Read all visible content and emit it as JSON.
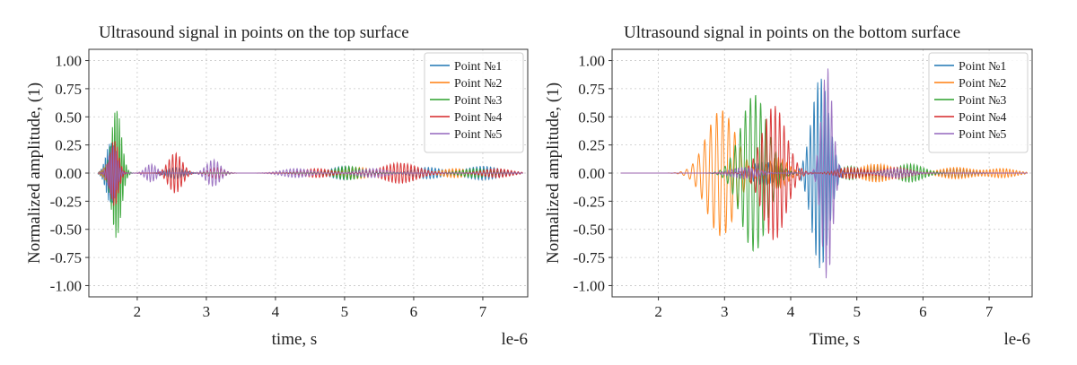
{
  "chart_data": [
    {
      "type": "line",
      "title": "Ultrasound signal in points on the top surface",
      "xlabel": "time, s",
      "ylabel": "Normalized amplitude, (1)",
      "x_offset_label": "le-6",
      "xlim": [
        1.3,
        7.65
      ],
      "ylim": [
        -1.1,
        1.1
      ],
      "xticks": [
        "2",
        "3",
        "4",
        "5",
        "6",
        "7"
      ],
      "yticks": [
        "1.00",
        "0.75",
        "0.50",
        "0.25",
        "0.00",
        "-0.25",
        "-0.50",
        "-0.75",
        "-1.00"
      ],
      "grid": true,
      "legend_position": "top-right",
      "series": [
        {
          "name": "Point №1",
          "color": "#1f77b4",
          "bursts": [
            [
              1.62,
              0.28,
              34,
              0.07
            ],
            [
              2.55,
              0.05,
              22,
              0.12
            ],
            [
              5.0,
              0.06,
              20,
              0.2
            ],
            [
              6.2,
              0.05,
              20,
              0.2
            ],
            [
              7.0,
              0.06,
              20,
              0.25
            ]
          ]
        },
        {
          "name": "Point №2",
          "color": "#ff7f0e",
          "bursts": [
            [
              1.6,
              0.1,
              34,
              0.07
            ],
            [
              5.2,
              0.05,
              20,
              0.2
            ],
            [
              6.6,
              0.04,
              20,
              0.2
            ]
          ]
        },
        {
          "name": "Point №3",
          "color": "#2ca02c",
          "bursts": [
            [
              1.7,
              0.58,
              30,
              0.07
            ],
            [
              5.05,
              0.06,
              20,
              0.2
            ],
            [
              6.9,
              0.04,
              20,
              0.2
            ]
          ]
        },
        {
          "name": "Point №4",
          "color": "#d62728",
          "bursts": [
            [
              1.67,
              0.3,
              30,
              0.06
            ],
            [
              2.55,
              0.18,
              20,
              0.1
            ],
            [
              3.15,
              0.05,
              20,
              0.1
            ],
            [
              4.6,
              0.04,
              20,
              0.2
            ],
            [
              5.8,
              0.09,
              20,
              0.25
            ],
            [
              7.2,
              0.04,
              20,
              0.2
            ]
          ]
        },
        {
          "name": "Point №5",
          "color": "#9467bd",
          "bursts": [
            [
              1.65,
              0.25,
              30,
              0.06
            ],
            [
              2.2,
              0.08,
              22,
              0.08
            ],
            [
              3.1,
              0.12,
              20,
              0.1
            ],
            [
              4.3,
              0.04,
              20,
              0.2
            ],
            [
              5.4,
              0.04,
              20,
              0.2
            ]
          ]
        }
      ]
    },
    {
      "type": "line",
      "title": "Ultrasound signal in points on the bottom surface",
      "xlabel": "Time, s",
      "ylabel": "Normalized amplitude, (1)",
      "x_offset_label": "le-6",
      "xlim": [
        1.3,
        7.65
      ],
      "ylim": [
        -1.1,
        1.1
      ],
      "xticks": [
        "2",
        "3",
        "4",
        "5",
        "6",
        "7"
      ],
      "yticks": [
        "1.00",
        "0.75",
        "0.50",
        "0.25",
        "0.00",
        "-0.25",
        "-0.50",
        "-0.75",
        "-1.00"
      ],
      "grid": true,
      "legend_position": "top-right",
      "series": [
        {
          "name": "Point №1",
          "color": "#1f77b4",
          "bursts": [
            [
              4.45,
              0.85,
              18,
              0.13
            ],
            [
              3.6,
              0.1,
              20,
              0.2
            ],
            [
              5.3,
              0.06,
              20,
              0.2
            ],
            [
              6.5,
              0.04,
              20,
              0.2
            ]
          ]
        },
        {
          "name": "Point №2",
          "color": "#ff7f0e",
          "bursts": [
            [
              2.95,
              0.56,
              11,
              0.22
            ],
            [
              3.8,
              0.14,
              16,
              0.15
            ],
            [
              5.3,
              0.08,
              20,
              0.25
            ],
            [
              6.5,
              0.05,
              20,
              0.25
            ],
            [
              7.2,
              0.04,
              20,
              0.2
            ]
          ]
        },
        {
          "name": "Point №3",
          "color": "#2ca02c",
          "bursts": [
            [
              3.45,
              0.7,
              13,
              0.2
            ],
            [
              5.8,
              0.08,
              20,
              0.2
            ],
            [
              4.9,
              0.06,
              20,
              0.15
            ]
          ]
        },
        {
          "name": "Point №4",
          "color": "#d62728",
          "bursts": [
            [
              3.75,
              0.6,
              15,
              0.18
            ],
            [
              5.6,
              0.05,
              20,
              0.2
            ],
            [
              4.9,
              0.05,
              20,
              0.2
            ]
          ]
        },
        {
          "name": "Point №5",
          "color": "#9467bd",
          "bursts": [
            [
              4.55,
              0.95,
              18,
              0.08
            ],
            [
              3.3,
              0.05,
              20,
              0.2
            ],
            [
              5.6,
              0.04,
              20,
              0.2
            ]
          ]
        }
      ]
    }
  ]
}
